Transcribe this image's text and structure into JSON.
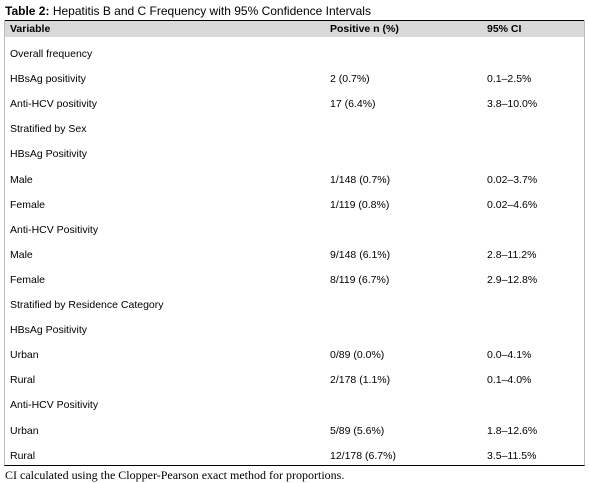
{
  "title": {
    "label": "Table 2:",
    "text": "Hepatitis B and C Frequency with 95% Confidence Intervals"
  },
  "table": {
    "header": [
      "Variable",
      "Positive n (%)",
      "95% CI"
    ],
    "rows": [
      [
        "Overall frequency"
      ],
      [
        "HBsAg positivity",
        "2 (0.7%)",
        "0.1–2.5%"
      ],
      [
        "Anti-HCV positivity",
        "17 (6.4%)",
        "3.8–10.0%"
      ],
      [
        "Stratified by Sex"
      ],
      [
        "HBsAg Positivity"
      ],
      [
        "Male",
        "1/148 (0.7%)",
        "0.02–3.7%"
      ],
      [
        "Female",
        "1/119 (0.8%)",
        "0.02–4.6%"
      ],
      [
        "Anti-HCV Positivity"
      ],
      [
        "Male",
        "9/148 (6.1%)",
        "2.8–11.2%"
      ],
      [
        "Female",
        "8/119 (6.7%)",
        "2.9–12.8%"
      ],
      [
        "Stratified by Residence Category"
      ],
      [
        "HBsAg Positivity"
      ],
      [
        "Urban",
        "0/89 (0.0%)",
        "0.0–4.1%"
      ],
      [
        "Rural",
        "2/178 (1.1%)",
        "0.1–4.0%"
      ],
      [
        "Anti-HCV Positivity"
      ],
      [
        "Urban",
        "5/89 (5.6%)",
        "1.8–12.6%"
      ],
      [
        "Rural",
        "12/178 (6.7%)",
        "3.5–11.5%"
      ]
    ]
  },
  "footnote": "CI calculated using the Clopper-Pearson exact method for proportions."
}
